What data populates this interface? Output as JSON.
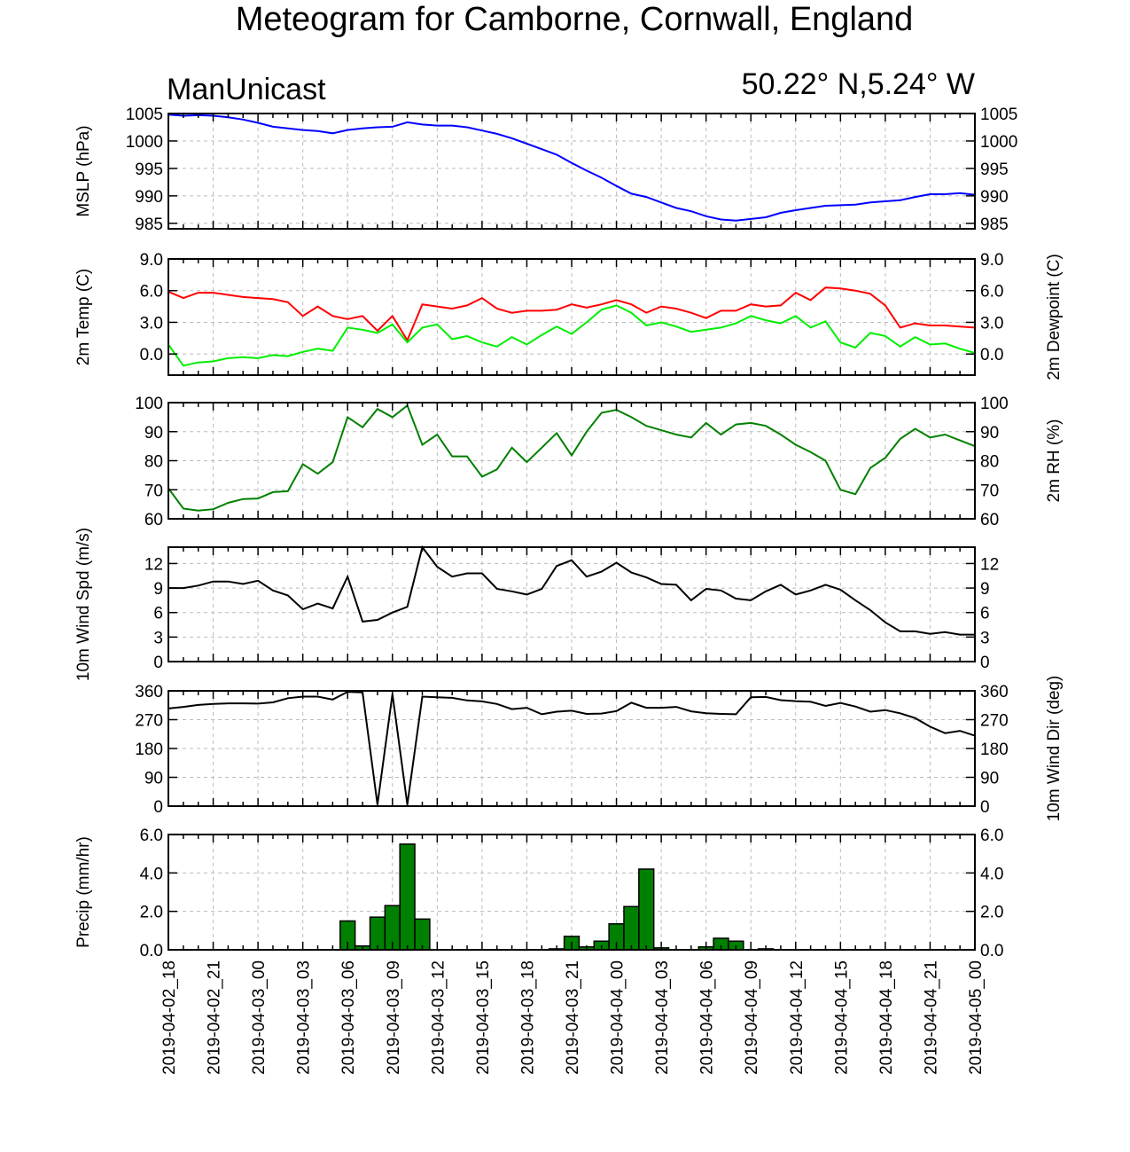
{
  "header": {
    "title": "Meteogram for Camborne, Cornwall, England",
    "model": "ManUnicast",
    "location": "50.22° N,5.24° W"
  },
  "chart_data": {
    "type": "line",
    "time_ticks": [
      "2019-04-02_18",
      "2019-04-02_21",
      "2019-04-03_00",
      "2019-04-03_03",
      "2019-04-03_06",
      "2019-04-03_09",
      "2019-04-03_12",
      "2019-04-03_15",
      "2019-04-03_18",
      "2019-04-03_21",
      "2019-04-04_00",
      "2019-04-04_03",
      "2019-04-04_06",
      "2019-04-04_09",
      "2019-04-04_12",
      "2019-04-04_15",
      "2019-04-04_18",
      "2019-04-04_21",
      "2019-04-05_00"
    ],
    "x_range_hours": [
      0,
      54
    ],
    "x_units": "hours after 2019-04-02_18",
    "panels": [
      {
        "id": "mslp",
        "ylabel": "MSLP (hPa)",
        "ylabel_right": "",
        "ylim": [
          984,
          1005
        ],
        "yticks": [
          985,
          990,
          995,
          1000,
          1005
        ],
        "ytick_labels": [
          "985",
          "990",
          "995",
          "1000",
          "1005"
        ],
        "series": [
          {
            "color": "#0000ff",
            "x": [
              0,
              1,
              2,
              3,
              4,
              5,
              6,
              7,
              8,
              9,
              10,
              11,
              12,
              13,
              14,
              15,
              16,
              17,
              18,
              19,
              20,
              21,
              22,
              23,
              24,
              25,
              26,
              27,
              28,
              29,
              30,
              31,
              32,
              33,
              34,
              35,
              36,
              37,
              38,
              39,
              40,
              41,
              42,
              43,
              44,
              45,
              46,
              47,
              48,
              49,
              50,
              51,
              52,
              53,
              54
            ],
            "y": [
              1004.8,
              1004.6,
              1004.7,
              1004.6,
              1004.3,
              1003.9,
              1003.3,
              1002.6,
              1002.3,
              1002.0,
              1001.8,
              1001.4,
              1002.0,
              1002.3,
              1002.5,
              1002.6,
              1003.4,
              1003.0,
              1002.8,
              1002.8,
              1002.5,
              1001.9,
              1001.3,
              1000.5,
              999.5,
              998.5,
              997.5,
              996.0,
              994.6,
              993.3,
              991.8,
              990.4,
              989.8,
              988.8,
              987.8,
              987.2,
              986.3,
              985.7,
              985.5,
              985.8,
              986.1,
              986.9,
              987.4,
              987.8,
              988.2,
              988.3,
              988.4,
              988.8,
              989.0,
              989.2,
              989.8,
              990.3,
              990.3,
              990.5,
              990.2
            ]
          }
        ]
      },
      {
        "id": "temp",
        "ylabel": "2m Temp (C)",
        "ylabel_right": "2m Dewpoint (C)",
        "ylim": [
          -2,
          9
        ],
        "yticks": [
          0,
          3,
          6,
          9
        ],
        "ytick_labels": [
          "0.0",
          "3.0",
          "6.0",
          "9.0"
        ],
        "series": [
          {
            "color": "#ff0000",
            "x": [
              0,
              1,
              2,
              3,
              4,
              5,
              6,
              7,
              8,
              9,
              10,
              11,
              12,
              13,
              14,
              15,
              16,
              17,
              18,
              19,
              20,
              21,
              22,
              23,
              24,
              25,
              26,
              27,
              28,
              29,
              30,
              31,
              32,
              33,
              34,
              35,
              36,
              37,
              38,
              39,
              40,
              41,
              42,
              43,
              44,
              45,
              46,
              47,
              48,
              49,
              50,
              51,
              52,
              53,
              54
            ],
            "y": [
              5.9,
              5.3,
              5.8,
              5.8,
              5.6,
              5.4,
              5.3,
              5.2,
              4.9,
              3.6,
              4.5,
              3.6,
              3.3,
              3.6,
              2.2,
              3.6,
              1.3,
              4.7,
              4.5,
              4.3,
              4.6,
              5.3,
              4.3,
              3.9,
              4.1,
              4.1,
              4.2,
              4.7,
              4.4,
              4.7,
              5.1,
              4.7,
              3.9,
              4.5,
              4.3,
              3.9,
              3.4,
              4.1,
              4.1,
              4.7,
              4.5,
              4.6,
              5.8,
              5.1,
              6.3,
              6.2,
              6.0,
              5.7,
              4.6,
              2.5,
              2.9,
              2.7,
              2.7,
              2.6,
              2.5
            ]
          },
          {
            "color": "#00ee00",
            "x": [
              0,
              1,
              2,
              3,
              4,
              5,
              6,
              7,
              8,
              9,
              10,
              11,
              12,
              13,
              14,
              15,
              16,
              17,
              18,
              19,
              20,
              21,
              22,
              23,
              24,
              25,
              26,
              27,
              28,
              29,
              30,
              31,
              32,
              33,
              34,
              35,
              36,
              37,
              38,
              39,
              40,
              41,
              42,
              43,
              44,
              45,
              46,
              47,
              48,
              49,
              50,
              51,
              52,
              53,
              54
            ],
            "y": [
              0.9,
              -1.1,
              -0.8,
              -0.7,
              -0.4,
              -0.3,
              -0.4,
              -0.1,
              -0.2,
              0.2,
              0.5,
              0.3,
              2.5,
              2.3,
              2.0,
              2.8,
              1.1,
              2.5,
              2.8,
              1.4,
              1.7,
              1.1,
              0.7,
              1.6,
              0.9,
              1.8,
              2.6,
              1.9,
              3.0,
              4.2,
              4.6,
              3.9,
              2.7,
              3.0,
              2.6,
              2.1,
              2.3,
              2.5,
              2.9,
              3.6,
              3.2,
              2.9,
              3.6,
              2.5,
              3.1,
              1.1,
              0.6,
              2.0,
              1.7,
              0.7,
              1.6,
              0.9,
              1.0,
              0.5,
              0.1
            ]
          }
        ]
      },
      {
        "id": "rh",
        "ylabel": "",
        "ylabel_right": "2m RH (%)",
        "ylim": [
          60,
          100
        ],
        "yticks": [
          60,
          70,
          80,
          90,
          100
        ],
        "ytick_labels": [
          "60",
          "70",
          "80",
          "90",
          "100"
        ],
        "series": [
          {
            "color": "#008000",
            "x": [
              0,
              1,
              2,
              3,
              4,
              5,
              6,
              7,
              8,
              9,
              10,
              11,
              12,
              13,
              14,
              15,
              16,
              17,
              18,
              19,
              20,
              21,
              22,
              23,
              24,
              25,
              26,
              27,
              28,
              29,
              30,
              31,
              32,
              33,
              34,
              35,
              36,
              37,
              38,
              39,
              40,
              41,
              42,
              43,
              44,
              45,
              46,
              47,
              48,
              49,
              50,
              51,
              52,
              53,
              54
            ],
            "y": [
              70.5,
              63.5,
              62.8,
              63.3,
              65.5,
              66.8,
              67.0,
              69.2,
              69.5,
              78.8,
              75.5,
              79.5,
              95.0,
              91.5,
              97.8,
              95.0,
              99.0,
              85.5,
              89.0,
              81.5,
              81.5,
              74.5,
              77.0,
              84.5,
              79.5,
              84.5,
              89.5,
              81.8,
              90.0,
              96.5,
              97.5,
              95.0,
              92.0,
              90.5,
              89.0,
              88.0,
              93.0,
              89.0,
              92.5,
              93.0,
              92.0,
              89.0,
              85.5,
              83.0,
              80.0,
              70.0,
              68.5,
              77.5,
              81.0,
              87.5,
              91.0,
              88.0,
              89.0,
              87.0,
              85.0
            ]
          }
        ]
      },
      {
        "id": "wspd",
        "ylabel": "10m Wind Spd (m/s)",
        "ylabel_right": "",
        "ylim": [
          0,
          14
        ],
        "yticks": [
          0,
          3,
          6,
          9,
          12
        ],
        "ytick_labels": [
          "0",
          "3",
          "6",
          "9",
          "12"
        ],
        "series": [
          {
            "color": "#000000",
            "x": [
              0,
              1,
              2,
              3,
              4,
              5,
              6,
              7,
              8,
              9,
              10,
              11,
              12,
              13,
              14,
              15,
              16,
              17,
              18,
              19,
              20,
              21,
              22,
              23,
              24,
              25,
              26,
              27,
              28,
              29,
              30,
              31,
              32,
              33,
              34,
              35,
              36,
              37,
              38,
              39,
              40,
              41,
              42,
              43,
              44,
              45,
              46,
              47,
              48,
              49,
              50,
              51,
              52,
              53,
              54
            ],
            "y": [
              9.0,
              9.0,
              9.3,
              9.8,
              9.8,
              9.5,
              9.9,
              8.7,
              8.1,
              6.4,
              7.1,
              6.5,
              10.4,
              4.9,
              5.1,
              6.0,
              6.7,
              14.0,
              11.6,
              10.4,
              10.8,
              10.8,
              8.9,
              8.6,
              8.2,
              8.9,
              11.7,
              12.4,
              10.4,
              11.0,
              12.1,
              10.9,
              10.3,
              9.5,
              9.4,
              7.5,
              8.9,
              8.7,
              7.7,
              7.5,
              8.6,
              9.4,
              8.2,
              8.7,
              9.4,
              8.8,
              7.5,
              6.3,
              4.8,
              3.7,
              3.7,
              3.4,
              3.6,
              3.3,
              3.3
            ]
          }
        ]
      },
      {
        "id": "wdir",
        "ylabel": "",
        "ylabel_right": "10m Wind Dir (deg)",
        "ylim": [
          0,
          360
        ],
        "yticks": [
          0,
          90,
          180,
          270,
          360
        ],
        "ytick_labels": [
          "0",
          "90",
          "180",
          "270",
          "360"
        ],
        "series": [
          {
            "color": "#000000",
            "x": [
              0,
              1,
              2,
              3,
              4,
              5,
              6,
              7,
              8,
              9,
              10,
              11,
              12,
              13,
              14,
              15,
              16,
              17,
              18,
              19,
              20,
              21,
              22,
              23,
              24,
              25,
              26,
              27,
              28,
              29,
              30,
              31,
              32,
              33,
              34,
              35,
              36,
              37,
              38,
              39,
              40,
              41,
              42,
              43,
              44,
              45,
              46,
              47,
              48,
              49,
              50,
              51,
              52,
              53,
              54
            ],
            "y": [
              305,
              310,
              316,
              319,
              321,
              321,
              320,
              324,
              337,
              342,
              342,
              333,
              357,
              355,
              5,
              350,
              5,
              342,
              340,
              338,
              330,
              327,
              319,
              303,
              307,
              287,
              295,
              298,
              288,
              289,
              297,
              323,
              307,
              307,
              310,
              296,
              290,
              288,
              287,
              340,
              341,
              331,
              328,
              326,
              313,
              322,
              311,
              295,
              300,
              290,
              275,
              248,
              228,
              235,
              220
            ]
          }
        ]
      },
      {
        "id": "precip",
        "ylabel": "Precip (mm/hr)",
        "ylabel_right": "",
        "ylim": [
          0,
          6
        ],
        "yticks": [
          0,
          2,
          4,
          6
        ],
        "ytick_labels": [
          "0.0",
          "2.0",
          "4.0",
          "6.0"
        ],
        "bar_color": "#008000",
        "bars": [
          {
            "x": 12,
            "y": 1.5
          },
          {
            "x": 13,
            "y": 0.2
          },
          {
            "x": 14,
            "y": 1.7
          },
          {
            "x": 15,
            "y": 2.3
          },
          {
            "x": 16,
            "y": 5.5
          },
          {
            "x": 17,
            "y": 1.6
          },
          {
            "x": 26,
            "y": 0.05
          },
          {
            "x": 27,
            "y": 0.7
          },
          {
            "x": 28,
            "y": 0.15
          },
          {
            "x": 29,
            "y": 0.45
          },
          {
            "x": 30,
            "y": 1.35
          },
          {
            "x": 31,
            "y": 2.25
          },
          {
            "x": 32,
            "y": 4.2
          },
          {
            "x": 33,
            "y": 0.1
          },
          {
            "x": 36,
            "y": 0.15
          },
          {
            "x": 37,
            "y": 0.6
          },
          {
            "x": 38,
            "y": 0.45
          },
          {
            "x": 40,
            "y": 0.05
          }
        ]
      }
    ]
  }
}
